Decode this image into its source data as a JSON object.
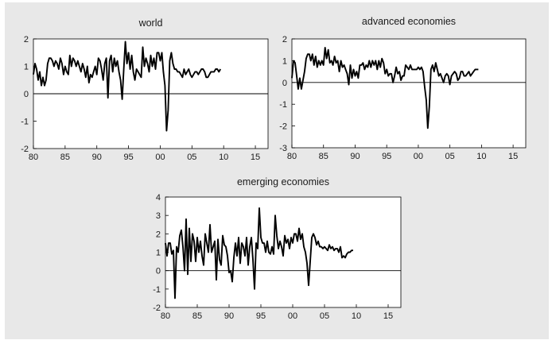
{
  "chart_data": [
    {
      "type": "line",
      "title": "world",
      "xlabel": "",
      "ylabel": "",
      "xlim": [
        1980,
        2017
      ],
      "ylim": [
        -2,
        2
      ],
      "x_ticks": [
        "80",
        "85",
        "90",
        "95",
        "00",
        "05",
        "10",
        "15"
      ],
      "y_ticks": [
        "-2",
        "-1",
        "0",
        "1",
        "2"
      ],
      "series": [
        {
          "name": "world",
          "values": [
            0.7,
            1.1,
            0.9,
            0.5,
            0.8,
            0.3,
            0.6,
            0.3,
            0.5,
            1.1,
            1.3,
            1.3,
            1.2,
            1.0,
            1.2,
            1.1,
            0.9,
            1.3,
            1.1,
            0.7,
            1.0,
            0.8,
            0.7,
            1.4,
            1.0,
            1.3,
            1.2,
            1.0,
            1.2,
            1.0,
            0.8,
            1.1,
            0.9,
            0.6,
            1.0,
            0.4,
            0.7,
            0.6,
            0.8,
            1.0,
            0.7,
            1.3,
            1.2,
            0.9,
            0.5,
            1.1,
            1.3,
            -0.15,
            1.2,
            1.4,
            0.8,
            1.3,
            1.0,
            1.2,
            0.8,
            0.5,
            -0.2,
            0.9,
            1.9,
            1.1,
            1.5,
            0.9,
            1.4,
            0.8,
            0.5,
            0.9,
            0.8,
            0.7,
            0.6,
            1.7,
            1.0,
            1.3,
            1.1,
            0.8,
            1.4,
            1.0,
            1.3,
            0.9,
            1.5,
            1.5,
            1.2,
            1.5,
            0.8,
            0.3,
            -1.35,
            -0.6,
            1.2,
            1.5,
            1.1,
            0.9,
            0.9,
            0.8,
            0.8,
            0.7,
            0.6,
            0.9,
            0.7,
            0.8,
            0.9,
            0.7,
            0.6,
            0.7,
            0.8,
            0.8,
            0.7,
            0.8,
            0.9,
            0.9,
            0.8,
            0.6,
            0.6,
            0.7,
            0.8,
            0.8,
            0.8,
            0.9,
            0.9,
            0.8,
            0.9
          ]
        }
      ]
    },
    {
      "type": "line",
      "title": "advanced economies",
      "xlabel": "",
      "ylabel": "",
      "xlim": [
        1980,
        2017
      ],
      "ylim": [
        -3,
        2
      ],
      "x_ticks": [
        "80",
        "85",
        "90",
        "95",
        "00",
        "05",
        "10",
        "15"
      ],
      "y_ticks": [
        "-3",
        "-2",
        "-1",
        "0",
        "1",
        "2"
      ],
      "series": [
        {
          "name": "advanced economies",
          "values": [
            0.2,
            1.0,
            0.9,
            0.3,
            -0.3,
            0.2,
            -0.3,
            0.1,
            0.5,
            1.1,
            1.3,
            1.3,
            1.0,
            1.3,
            0.8,
            1.2,
            0.7,
            1.0,
            0.8,
            1.0,
            0.8,
            1.6,
            1.1,
            1.5,
            0.9,
            1.0,
            0.8,
            1.2,
            0.9,
            1.0,
            0.5,
            1.0,
            0.7,
            0.8,
            0.6,
            0.4,
            -0.1,
            0.8,
            0.2,
            0.6,
            0.3,
            0.5,
            0.2,
            0.8,
            0.8,
            0.9,
            0.6,
            0.8,
            0.7,
            1.0,
            0.7,
            1.0,
            0.8,
            1.0,
            0.6,
            1.0,
            0.7,
            1.1,
            0.9,
            0.4,
            0.6,
            0.3,
            0.4,
            0.4,
            0.0,
            0.3,
            0.7,
            0.4,
            0.5,
            0.1,
            0.3,
            0.3,
            0.8,
            0.7,
            0.6,
            0.8,
            0.6,
            0.6,
            0.6,
            0.6,
            0.7,
            0.6,
            0.7,
            0.5,
            -0.2,
            -0.8,
            -2.1,
            -1.1,
            0.6,
            0.8,
            0.5,
            0.9,
            0.6,
            0.3,
            0.4,
            0.2,
            0.0,
            0.3,
            0.4,
            0.3,
            -0.1,
            0.3,
            0.4,
            0.5,
            0.4,
            0.1,
            0.2,
            0.5,
            0.5,
            0.3,
            0.3,
            0.4,
            0.5,
            0.3,
            0.4,
            0.5,
            0.6,
            0.6,
            0.6
          ]
        }
      ]
    },
    {
      "type": "line",
      "title": "emerging economies",
      "xlabel": "",
      "ylabel": "",
      "xlim": [
        1980,
        2017
      ],
      "ylim": [
        -2,
        4
      ],
      "x_ticks": [
        "80",
        "85",
        "90",
        "95",
        "00",
        "05",
        "10",
        "15"
      ],
      "y_ticks": [
        "-2",
        "-1",
        "0",
        "1",
        "2",
        "3",
        "4"
      ],
      "series": [
        {
          "name": "emerging economies",
          "values": [
            1.5,
            0.8,
            1.5,
            1.5,
            0.9,
            1.1,
            -1.5,
            1.3,
            1.0,
            1.9,
            2.2,
            1.3,
            0.0,
            2.8,
            -0.2,
            2.3,
            0.5,
            2.0,
            1.6,
            0.5,
            1.8,
            1.0,
            1.6,
            0.8,
            0.3,
            2.0,
            1.5,
            1.0,
            2.5,
            1.0,
            1.3,
            1.6,
            -0.5,
            1.7,
            0.6,
            0.3,
            1.9,
            1.4,
            1.3,
            0.8,
            -0.1,
            0.0,
            -0.6,
            0.7,
            1.5,
            0.8,
            1.8,
            0.4,
            1.5,
            1.3,
            0.8,
            1.8,
            0.3,
            1.3,
            1.8,
            0.6,
            -1.0,
            1.5,
            1.2,
            3.4,
            1.8,
            1.5,
            1.5,
            1.0,
            1.6,
            1.0,
            0.9,
            1.3,
            0.9,
            3.0,
            1.9,
            1.2,
            1.6,
            1.3,
            0.8,
            1.9,
            1.5,
            1.7,
            1.2,
            1.8,
            1.5,
            2.0,
            2.0,
            1.6,
            2.3,
            1.7,
            2.0,
            1.3,
            1.0,
            0.4,
            -0.8,
            0.5,
            1.8,
            2.0,
            1.8,
            1.4,
            1.6,
            1.3,
            1.3,
            1.2,
            1.3,
            1.2,
            1.1,
            1.4,
            1.2,
            1.3,
            1.1,
            1.2,
            1.2,
            1.0,
            1.3,
            0.7,
            0.8,
            0.7,
            0.9,
            1.0,
            1.0,
            1.1,
            1.1
          ]
        }
      ]
    }
  ]
}
